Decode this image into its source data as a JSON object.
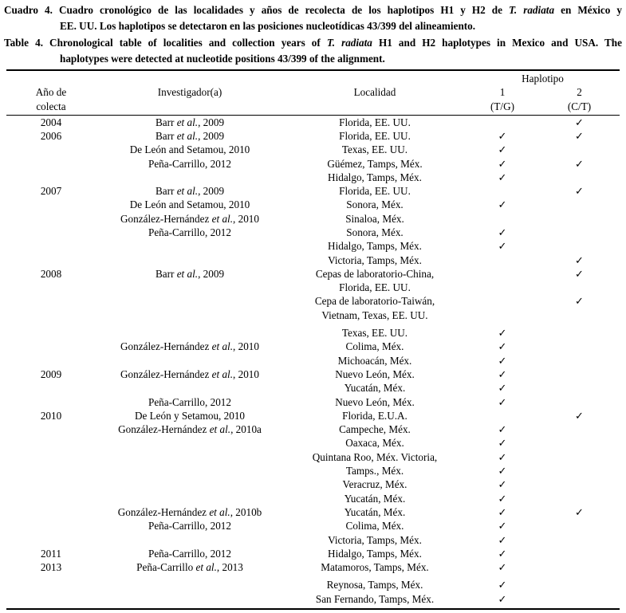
{
  "title": {
    "es_line1": "Cuadro 4. Cuadro cronológico de las localidades y años de recolecta de los haplotipos H1 y H2 de T. radiata en México y",
    "es_line2": "EE. UU. Los haplotipos se detectaron en las posiciones nucleotídicas 43/399 del alineamiento.",
    "en_line1": "Table 4. Chronological table of localities and collection years of T. radiata H1 and H2 haplotypes in Mexico and USA. The",
    "en_line2": "haplotypes were detected at nucleotide positions 43/399 of the alignment."
  },
  "italic_phrases": [
    "T. radiata",
    "et al."
  ],
  "table": {
    "headers": {
      "year_l1": "Año de",
      "year_l2": "colecta",
      "investigator": "Investigador(a)",
      "locality": "Localidad",
      "haplotype_group": "Haplotipo",
      "h1_num": "1",
      "h1_alleles": "(T/G)",
      "h2_num": "2",
      "h2_alleles": "(C/T)"
    },
    "check_glyph": "✓",
    "rows": [
      {
        "year": "2004",
        "investigator": "Barr et al., 2009",
        "locality": "Florida, EE. UU.",
        "h1": false,
        "h2": true
      },
      {
        "year": "2006",
        "investigator": "Barr et al., 2009",
        "locality": "Florida, EE. UU.",
        "h1": true,
        "h2": true
      },
      {
        "year": "",
        "investigator": "De León and Setamou, 2010",
        "locality": "Texas, EE. UU.",
        "h1": true,
        "h2": false
      },
      {
        "year": "",
        "investigator": "Peña-Carrillo, 2012",
        "locality": "Güémez, Tamps, Méx.",
        "h1": true,
        "h2": true
      },
      {
        "year": "",
        "investigator": "",
        "locality": "Hidalgo, Tamps, Méx.",
        "h1": true,
        "h2": false
      },
      {
        "year": "2007",
        "investigator": "Barr et al., 2009",
        "locality": "Florida, EE. UU.",
        "h1": false,
        "h2": true
      },
      {
        "year": "",
        "investigator": "De León and Setamou, 2010",
        "locality": "Sonora, Méx.",
        "h1": true,
        "h2": false
      },
      {
        "year": "",
        "investigator": "González-Hernández et al., 2010",
        "locality": "Sinaloa, Méx.",
        "h1": false,
        "h2": false
      },
      {
        "year": "",
        "investigator": "Peña-Carrillo, 2012",
        "locality": "Sonora, Méx.",
        "h1": true,
        "h2": false
      },
      {
        "year": "",
        "investigator": "",
        "locality": "Hidalgo, Tamps, Méx.",
        "h1": true,
        "h2": false
      },
      {
        "year": "",
        "investigator": "",
        "locality": "Victoria, Tamps, Méx.",
        "h1": false,
        "h2": true
      },
      {
        "year": "2008",
        "investigator": "Barr et al., 2009",
        "locality": "Cepas de laboratorio-China,",
        "h1": false,
        "h2": true
      },
      {
        "year": "",
        "investigator": "",
        "locality": "Florida, EE. UU.",
        "h1": false,
        "h2": false
      },
      {
        "year": "",
        "investigator": "",
        "locality": "Cepa de laboratorio-Taiwán,",
        "h1": false,
        "h2": true
      },
      {
        "year": "",
        "investigator": "",
        "locality": "Vietnam, Texas, EE. UU.",
        "h1": false,
        "h2": false
      },
      {
        "year": "",
        "investigator": "",
        "locality": "Texas, EE. UU.",
        "h1": true,
        "h2": false,
        "gap": true
      },
      {
        "year": "",
        "investigator": "González-Hernández et al., 2010",
        "locality": "Colima, Méx.",
        "h1": true,
        "h2": false
      },
      {
        "year": "",
        "investigator": "",
        "locality": "Michoacán, Méx.",
        "h1": true,
        "h2": false
      },
      {
        "year": "2009",
        "investigator": "González-Hernández et al., 2010",
        "locality": "Nuevo León, Méx.",
        "h1": true,
        "h2": false
      },
      {
        "year": "",
        "investigator": "",
        "locality": "Yucatán, Méx.",
        "h1": true,
        "h2": false
      },
      {
        "year": "",
        "investigator": "Peña-Carrillo, 2012",
        "locality": "Nuevo León, Méx.",
        "h1": true,
        "h2": false
      },
      {
        "year": "2010",
        "investigator": "De León y Setamou, 2010",
        "locality": "Florida, E.U.A.",
        "h1": false,
        "h2": true
      },
      {
        "year": "",
        "investigator": "González-Hernández et al., 2010a",
        "locality": "Campeche, Méx.",
        "h1": true,
        "h2": false
      },
      {
        "year": "",
        "investigator": "",
        "locality": "Oaxaca, Méx.",
        "h1": true,
        "h2": false
      },
      {
        "year": "",
        "investigator": "",
        "locality": "Quintana Roo, Méx. Victoria,",
        "h1": true,
        "h2": false
      },
      {
        "year": "",
        "investigator": "",
        "locality": "Tamps., Méx.",
        "h1": true,
        "h2": false
      },
      {
        "year": "",
        "investigator": "",
        "locality": "Veracruz, Méx.",
        "h1": true,
        "h2": false
      },
      {
        "year": "",
        "investigator": "",
        "locality": "Yucatán, Méx.",
        "h1": true,
        "h2": false
      },
      {
        "year": "",
        "investigator": "González-Hernández et al., 2010b",
        "locality": "Yucatán, Méx.",
        "h1": true,
        "h2": true
      },
      {
        "year": "",
        "investigator": "Peña-Carrillo, 2012",
        "locality": "Colima, Méx.",
        "h1": true,
        "h2": false
      },
      {
        "year": "",
        "investigator": "",
        "locality": "Victoria, Tamps, Méx.",
        "h1": true,
        "h2": false
      },
      {
        "year": "2011",
        "investigator": "Peña-Carrillo, 2012",
        "locality": "Hidalgo, Tamps, Méx.",
        "h1": true,
        "h2": false
      },
      {
        "year": "2013",
        "investigator": "Peña-Carrillo et al., 2013",
        "locality": "Matamoros, Tamps, Méx.",
        "h1": true,
        "h2": false
      },
      {
        "year": "",
        "investigator": "",
        "locality": "Reynosa, Tamps, Méx.",
        "h1": true,
        "h2": false,
        "gap": true
      },
      {
        "year": "",
        "investigator": "",
        "locality": "San Fernando, Tamps, Méx.",
        "h1": true,
        "h2": false
      }
    ]
  }
}
